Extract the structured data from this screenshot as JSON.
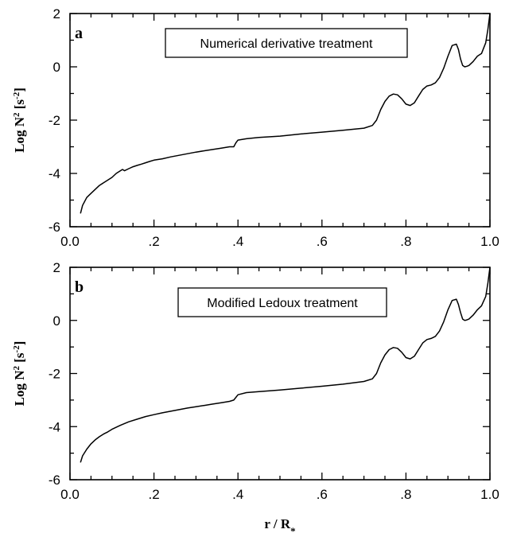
{
  "chart_data": [
    {
      "type": "line",
      "panel_label": "a",
      "annotation": "Numerical derivative treatment",
      "ylabel": "Log N² [s⁻²]",
      "xlabel": "",
      "xlim": [
        0.0,
        1.0
      ],
      "ylim": [
        -6,
        2
      ],
      "xticks": [
        "0.0",
        ".2",
        ".4",
        ".6",
        ".8",
        "1.0"
      ],
      "yticks": [
        "2",
        "0",
        "-2",
        "-4",
        "-6"
      ],
      "series": [
        {
          "x": [
            0.025,
            0.03,
            0.04,
            0.05,
            0.06,
            0.07,
            0.08,
            0.09,
            0.1,
            0.11,
            0.12,
            0.125,
            0.13,
            0.14,
            0.15,
            0.16,
            0.17,
            0.18,
            0.19,
            0.2,
            0.22,
            0.24,
            0.26,
            0.28,
            0.3,
            0.32,
            0.34,
            0.36,
            0.38,
            0.39,
            0.395,
            0.4,
            0.42,
            0.45,
            0.5,
            0.55,
            0.6,
            0.65,
            0.7,
            0.72,
            0.73,
            0.74,
            0.75,
            0.76,
            0.77,
            0.78,
            0.79,
            0.8,
            0.81,
            0.82,
            0.83,
            0.84,
            0.85,
            0.86,
            0.87,
            0.88,
            0.89,
            0.9,
            0.91,
            0.92,
            0.925,
            0.93,
            0.935,
            0.94,
            0.945,
            0.95,
            0.96,
            0.97,
            0.98,
            0.99,
            0.995,
            1.0
          ],
          "y": [
            -5.5,
            -5.2,
            -4.9,
            -4.75,
            -4.6,
            -4.45,
            -4.35,
            -4.25,
            -4.15,
            -4.0,
            -3.9,
            -3.85,
            -3.9,
            -3.82,
            -3.75,
            -3.7,
            -3.65,
            -3.6,
            -3.55,
            -3.5,
            -3.45,
            -3.38,
            -3.32,
            -3.26,
            -3.2,
            -3.15,
            -3.1,
            -3.05,
            -3.0,
            -3.0,
            -2.85,
            -2.75,
            -2.7,
            -2.65,
            -2.6,
            -2.52,
            -2.45,
            -2.38,
            -2.3,
            -2.2,
            -2.0,
            -1.6,
            -1.3,
            -1.1,
            -1.02,
            -1.05,
            -1.2,
            -1.4,
            -1.45,
            -1.35,
            -1.1,
            -0.85,
            -0.72,
            -0.68,
            -0.6,
            -0.4,
            -0.05,
            0.4,
            0.8,
            0.85,
            0.65,
            0.3,
            0.05,
            0.0,
            0.02,
            0.05,
            0.2,
            0.4,
            0.5,
            0.9,
            1.4,
            2.0
          ]
        }
      ]
    },
    {
      "type": "line",
      "panel_label": "b",
      "annotation": "Modified Ledoux treatment",
      "ylabel": "Log N² [s⁻²]",
      "xlabel": "r / R*",
      "xlim": [
        0.0,
        1.0
      ],
      "ylim": [
        -6,
        2
      ],
      "xticks": [
        "0.0",
        ".2",
        ".4",
        ".6",
        ".8",
        "1.0"
      ],
      "yticks": [
        "2",
        "0",
        "-2",
        "-4",
        "-6"
      ],
      "series": [
        {
          "x": [
            0.025,
            0.03,
            0.04,
            0.05,
            0.06,
            0.07,
            0.08,
            0.09,
            0.1,
            0.12,
            0.14,
            0.16,
            0.18,
            0.2,
            0.22,
            0.24,
            0.26,
            0.28,
            0.3,
            0.32,
            0.34,
            0.36,
            0.38,
            0.39,
            0.395,
            0.4,
            0.42,
            0.45,
            0.5,
            0.55,
            0.6,
            0.65,
            0.7,
            0.72,
            0.73,
            0.74,
            0.75,
            0.76,
            0.77,
            0.78,
            0.79,
            0.8,
            0.81,
            0.82,
            0.83,
            0.84,
            0.85,
            0.86,
            0.87,
            0.88,
            0.89,
            0.9,
            0.91,
            0.92,
            0.925,
            0.93,
            0.935,
            0.94,
            0.945,
            0.95,
            0.96,
            0.97,
            0.98,
            0.99,
            0.995,
            1.0
          ],
          "y": [
            -5.35,
            -5.1,
            -4.85,
            -4.65,
            -4.5,
            -4.38,
            -4.28,
            -4.2,
            -4.1,
            -3.95,
            -3.82,
            -3.72,
            -3.62,
            -3.55,
            -3.48,
            -3.42,
            -3.36,
            -3.3,
            -3.25,
            -3.2,
            -3.15,
            -3.1,
            -3.05,
            -3.0,
            -2.9,
            -2.8,
            -2.72,
            -2.68,
            -2.62,
            -2.55,
            -2.48,
            -2.4,
            -2.3,
            -2.2,
            -2.0,
            -1.6,
            -1.3,
            -1.1,
            -1.02,
            -1.05,
            -1.2,
            -1.4,
            -1.45,
            -1.35,
            -1.1,
            -0.85,
            -0.72,
            -0.68,
            -0.6,
            -0.4,
            -0.05,
            0.4,
            0.75,
            0.8,
            0.6,
            0.3,
            0.05,
            0.0,
            0.02,
            0.05,
            0.2,
            0.4,
            0.55,
            0.9,
            1.4,
            2.0
          ]
        }
      ]
    }
  ]
}
